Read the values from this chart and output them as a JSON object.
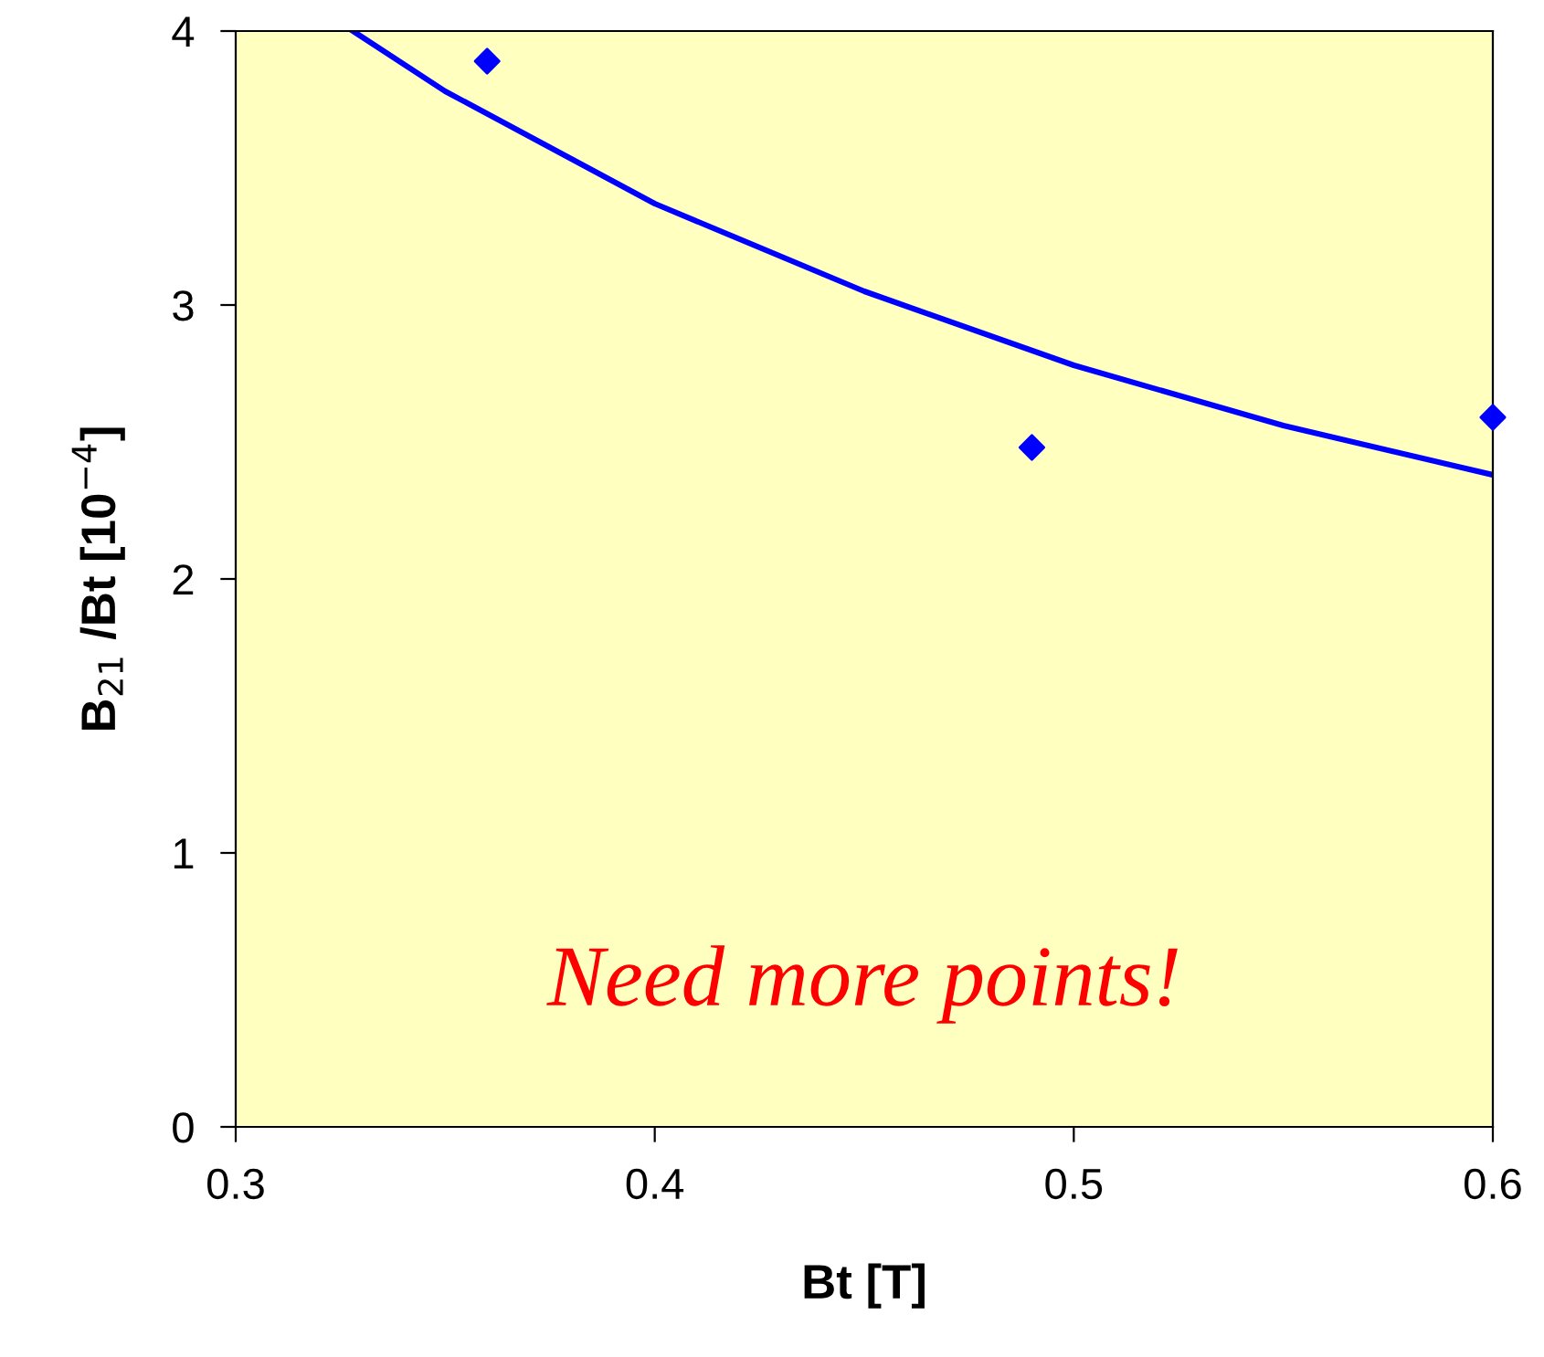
{
  "chart_data": {
    "type": "scatter",
    "xlabel": "Bt [T]",
    "ylabel": "B$_{21}$ /Bt [10$^{−4}$]",
    "xlim": [
      0.3,
      0.6
    ],
    "ylim": [
      0,
      4
    ],
    "xticks": [
      0.3,
      0.4,
      0.5,
      0.6
    ],
    "yticks": [
      0,
      1,
      2,
      3,
      4
    ],
    "series": [
      {
        "color": "#0000ff",
        "marker": "diamond",
        "x": [
          0.36,
          0.49,
          0.6
        ],
        "values": [
          3.89,
          2.48,
          2.59
        ]
      },
      {
        "type": "line",
        "color": "#0000ff",
        "marker": "none",
        "line_style": "solid",
        "x": [
          0.328,
          0.35,
          0.4,
          0.45,
          0.5,
          0.55,
          0.6
        ],
        "values": [
          4.0,
          3.78,
          3.37,
          3.05,
          2.78,
          2.56,
          2.38
        ]
      }
    ],
    "annotations": [
      "Need more points!"
    ]
  }
}
